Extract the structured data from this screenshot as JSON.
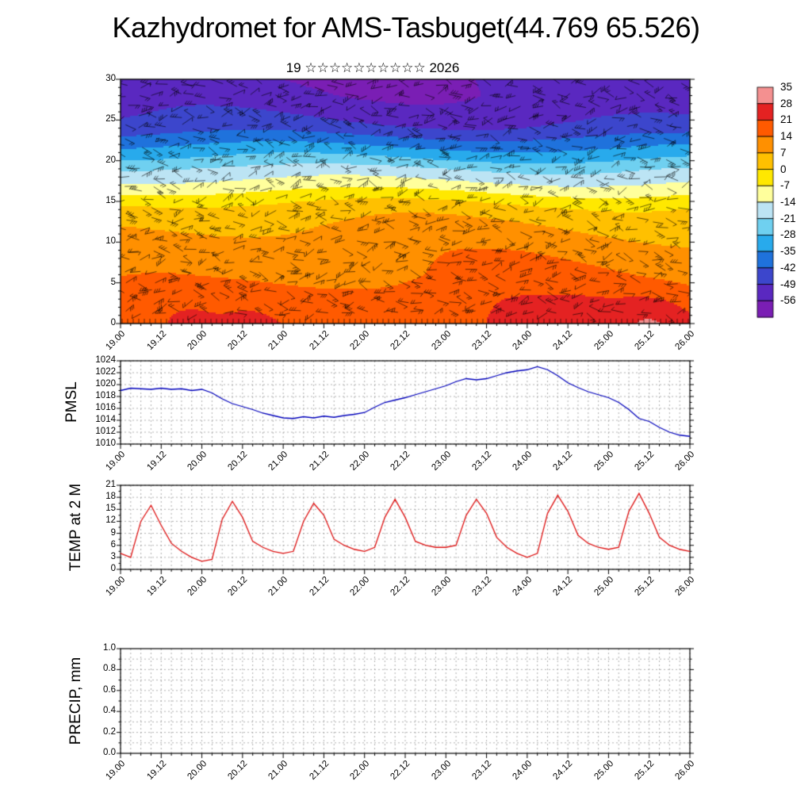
{
  "title": "Kazhydromet for AMS-Tasbuget(44.769 65.526)",
  "subtitle": "19 ☆☆☆☆☆☆☆☆☆☆ 2026",
  "time_axis": {
    "labels": [
      "19.00",
      "19.12",
      "20.00",
      "20.12",
      "21.00",
      "21.12",
      "22.00",
      "22.12",
      "23.00",
      "23.12",
      "24.00",
      "24.12",
      "25.00",
      "25.12",
      "26.00"
    ],
    "start": 19,
    "end": 26,
    "label_step_days": 0.5,
    "minor_step_days": 0.125
  },
  "colorbar": {
    "labels": [
      "35",
      "28",
      "21",
      "14",
      "7",
      "0",
      "-7",
      "-14",
      "-21",
      "-28",
      "-35",
      "-42",
      "-49",
      "-56"
    ],
    "colors": [
      "#f49090",
      "#e42222",
      "#ff5a00",
      "#ff9000",
      "#ffc000",
      "#ffe800",
      "#ffff9c",
      "#bce4f4",
      "#6fd0f0",
      "#28aaec",
      "#1f72dc",
      "#3c46cc",
      "#5a28c0",
      "#7a1eb4"
    ]
  },
  "chart_data": [
    {
      "type": "heatmap",
      "name": "temperature-wind-cross-section",
      "overlay": "wind-barbs",
      "xlim": [
        19,
        26
      ],
      "ylim": [
        0,
        30
      ],
      "yticks": [
        "30",
        "25",
        "20",
        "15",
        "10",
        "5",
        "0"
      ],
      "value_units": "deg C",
      "profile_levels": [
        0,
        3,
        6,
        9,
        12,
        14,
        15,
        16,
        17,
        18,
        19,
        20,
        21,
        22,
        23,
        24,
        25,
        26,
        28,
        30
      ],
      "profile_temps": [
        19.5,
        17.5,
        13.5,
        11,
        7,
        3,
        -1,
        -6,
        -11,
        -16,
        -20,
        -26,
        -31,
        -36,
        -41,
        -46,
        -49,
        -51,
        -54,
        -55
      ],
      "warm_spots": [
        {
          "t": 19.8,
          "amp": 3
        },
        {
          "t": 20.6,
          "amp": 2.5
        },
        {
          "t": 23.85,
          "amp": 5
        },
        {
          "t": 24.6,
          "amp": 2.5
        },
        {
          "t": 25.5,
          "amp": 6
        }
      ]
    },
    {
      "type": "line",
      "name": "PMSL",
      "color": "#0000bb",
      "ylim": [
        1010,
        1024
      ],
      "yticks": [
        "1024",
        "1022",
        "1020",
        "1018",
        "1016",
        "1014",
        "1012",
        "1010"
      ],
      "x_start": 19,
      "x_step_days": 0.125,
      "values": [
        1019.0,
        1019.4,
        1019.3,
        1019.2,
        1019.4,
        1019.2,
        1019.3,
        1019.0,
        1019.2,
        1018.6,
        1017.6,
        1016.8,
        1016.3,
        1015.8,
        1015.2,
        1014.8,
        1014.4,
        1014.3,
        1014.6,
        1014.4,
        1014.7,
        1014.5,
        1014.8,
        1015.0,
        1015.3,
        1016.2,
        1017.0,
        1017.4,
        1017.8,
        1018.3,
        1018.8,
        1019.3,
        1019.8,
        1020.5,
        1021.0,
        1020.8,
        1021.0,
        1021.5,
        1022.0,
        1022.3,
        1022.5,
        1023.0,
        1022.5,
        1021.5,
        1020.3,
        1019.5,
        1018.8,
        1018.3,
        1017.8,
        1017.0,
        1015.8,
        1014.3,
        1013.8,
        1012.8,
        1012.0,
        1011.5,
        1011.3
      ]
    },
    {
      "type": "line",
      "name": "TEMP at 2 M",
      "color": "#dd1111",
      "ylim": [
        0,
        21
      ],
      "yticks": [
        "21",
        "18",
        "15",
        "12",
        "9",
        "6",
        "3",
        "0"
      ],
      "x_start": 19,
      "x_step_days": 0.125,
      "values": [
        4.0,
        3.0,
        12.0,
        16.0,
        11.0,
        6.5,
        4.5,
        3.0,
        2.0,
        2.5,
        12.5,
        17.0,
        13.0,
        7.0,
        5.5,
        4.5,
        4.0,
        4.5,
        12.0,
        16.5,
        13.5,
        7.5,
        6.0,
        5.0,
        4.5,
        5.5,
        13.0,
        17.5,
        13.0,
        7.0,
        6.0,
        5.5,
        5.5,
        6.0,
        13.5,
        17.5,
        14.0,
        8.0,
        5.5,
        4.0,
        3.0,
        4.0,
        14.0,
        18.5,
        14.5,
        8.5,
        6.5,
        5.5,
        5.0,
        5.5,
        14.5,
        19.0,
        14.0,
        8.0,
        6.0,
        5.0,
        4.5
      ]
    },
    {
      "type": "line",
      "name": "PRECIP, mm",
      "color": "#009900",
      "ylim": [
        0,
        1
      ],
      "yticks": [
        "1.0",
        "0.8",
        "0.6",
        "0.4",
        "0.2",
        "0.0"
      ],
      "x_start": 19,
      "x_step_days": 0.125,
      "values": []
    }
  ]
}
